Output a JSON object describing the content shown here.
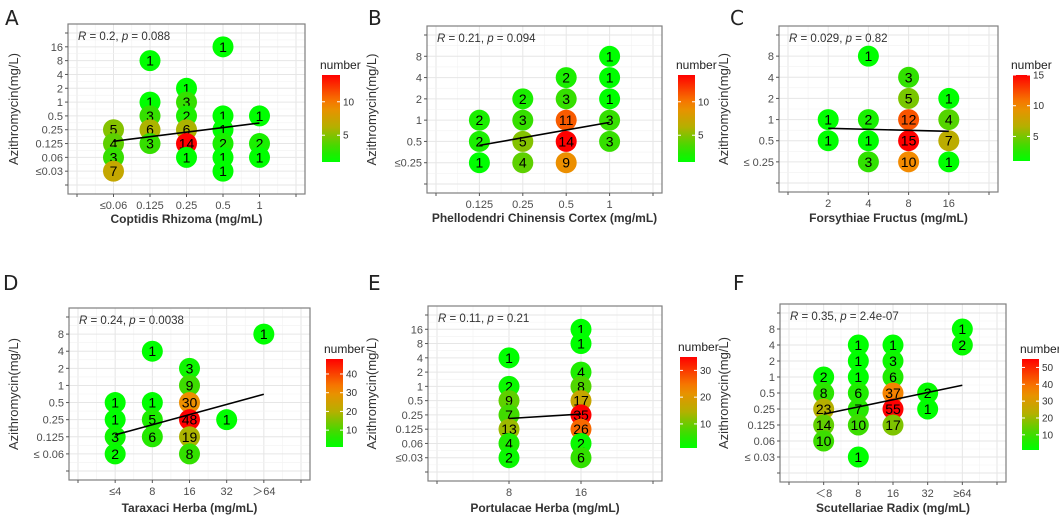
{
  "chart_data": [
    {
      "panel": "A",
      "type": "scatter",
      "xlabel": "Coptidis Rhizoma (mg/mL)",
      "ylabel": "Azithromycin(mg/L)",
      "stat": {
        "r": "0.2",
        "p": "0.088"
      },
      "x_categories": [
        "≤0.06",
        "0.125",
        "0.25",
        "0.5",
        "1"
      ],
      "y_categories": [
        "16",
        "8",
        "4",
        "2",
        "1",
        "0.5",
        "0.25",
        "0.125",
        "0.06",
        "≤0.03"
      ],
      "y_nominal": [
        16,
        8,
        4,
        2,
        1,
        0.5,
        0.25,
        0.125,
        0.06,
        0.03
      ],
      "points": [
        [
          "≤0.06",
          "0.25",
          5
        ],
        [
          "≤0.06",
          "0.125",
          4
        ],
        [
          "≤0.06",
          "0.06",
          3
        ],
        [
          "≤0.06",
          "≤0.03",
          7
        ],
        [
          "0.125",
          "8",
          1
        ],
        [
          "0.125",
          "1",
          1
        ],
        [
          "0.125",
          "0.5",
          3
        ],
        [
          "0.125",
          "0.25",
          6
        ],
        [
          "0.125",
          "0.125",
          3
        ],
        [
          "0.25",
          "2",
          1
        ],
        [
          "0.25",
          "1",
          3
        ],
        [
          "0.25",
          "0.5",
          2
        ],
        [
          "0.25",
          "0.25",
          6
        ],
        [
          "0.25",
          "0.125",
          14
        ],
        [
          "0.25",
          "0.06",
          1
        ],
        [
          "0.5",
          "16",
          1
        ],
        [
          "0.5",
          "0.5",
          1
        ],
        [
          "0.5",
          "0.25",
          1
        ],
        [
          "0.5",
          "0.125",
          2
        ],
        [
          "0.5",
          "0.06",
          1
        ],
        [
          "0.5",
          "≤0.03",
          1
        ],
        [
          "1",
          "0.5",
          1
        ],
        [
          "1",
          "0.125",
          2
        ],
        [
          "1",
          "0.06",
          1
        ]
      ],
      "trend": {
        "start": {
          "x": "≤0.06",
          "y": 0.14
        },
        "end": {
          "x": "1",
          "y": 0.35
        }
      },
      "legend": {
        "title": "number",
        "min": 1,
        "max": 14,
        "ticks": [
          "5",
          "10"
        ]
      }
    },
    {
      "panel": "B",
      "type": "scatter",
      "xlabel": "Phellodendri Chinensis Cortex (mg/mL)",
      "ylabel": "Azithromycin(mg/L)",
      "stat": {
        "r": "0.21",
        "p": "0.094"
      },
      "x_categories": [
        "0.125",
        "0.25",
        "0.5",
        "1"
      ],
      "y_categories": [
        "8",
        "4",
        "2",
        "1",
        "0.5",
        "≤0.25"
      ],
      "y_nominal": [
        8,
        4,
        2,
        1,
        0.5,
        0.25
      ],
      "points": [
        [
          "0.125",
          "1",
          2
        ],
        [
          "0.125",
          "0.5",
          2
        ],
        [
          "0.125",
          "≤0.25",
          1
        ],
        [
          "0.25",
          "2",
          2
        ],
        [
          "0.25",
          "1",
          3
        ],
        [
          "0.25",
          "0.5",
          5
        ],
        [
          "0.25",
          "≤0.25",
          4
        ],
        [
          "0.5",
          "4",
          2
        ],
        [
          "0.5",
          "2",
          3
        ],
        [
          "0.5",
          "1",
          11
        ],
        [
          "0.5",
          "0.5",
          14
        ],
        [
          "0.5",
          "≤0.25",
          9
        ],
        [
          "1",
          "8",
          1
        ],
        [
          "1",
          "4",
          1
        ],
        [
          "1",
          "2",
          1
        ],
        [
          "1",
          "1",
          3
        ],
        [
          "1",
          "0.5",
          3
        ]
      ],
      "trend": {
        "start": {
          "x": "0.125",
          "y": 0.44
        },
        "end": {
          "x": "1",
          "y": 0.93
        }
      },
      "legend": {
        "title": "number",
        "min": 1,
        "max": 14,
        "ticks": [
          "5",
          "10"
        ]
      }
    },
    {
      "panel": "C",
      "type": "scatter",
      "xlabel": "Forsythiae Fructus (mg/mL)",
      "ylabel": "Azithromycin(mg/L)",
      "stat": {
        "r": "0.029",
        "p": "0.82"
      },
      "x_categories": [
        "2",
        "4",
        "8",
        "16"
      ],
      "y_categories": [
        "8",
        "4",
        "2",
        "1",
        "0.5",
        "≤ 0.25"
      ],
      "y_nominal": [
        8,
        4,
        2,
        1,
        0.5,
        0.25
      ],
      "points": [
        [
          "2",
          "1",
          1
        ],
        [
          "2",
          "0.5",
          1
        ],
        [
          "4",
          "8",
          1
        ],
        [
          "4",
          "1",
          2
        ],
        [
          "4",
          "0.5",
          1
        ],
        [
          "4",
          "≤ 0.25",
          3
        ],
        [
          "8",
          "4",
          3
        ],
        [
          "8",
          "2",
          5
        ],
        [
          "8",
          "1",
          12
        ],
        [
          "8",
          "0.5",
          15
        ],
        [
          "8",
          "≤ 0.25",
          10
        ],
        [
          "16",
          "2",
          1
        ],
        [
          "16",
          "1",
          4
        ],
        [
          "16",
          "0.5",
          7
        ],
        [
          "16",
          "≤ 0.25",
          1
        ]
      ],
      "trend": {
        "start": {
          "x": "2",
          "y": 0.75
        },
        "end": {
          "x": "16",
          "y": 0.68
        }
      },
      "legend": {
        "title": "number",
        "min": 1,
        "max": 15,
        "ticks": [
          "5",
          "10",
          "15"
        ]
      }
    },
    {
      "panel": "D",
      "type": "scatter",
      "xlabel": "Taraxaci Herba (mg/mL)",
      "ylabel": "Azithromycin(mg/L)",
      "stat": {
        "r": "0.24",
        "p": "0.0038"
      },
      "x_categories": [
        "≤4",
        "8",
        "16",
        "32",
        "＞64"
      ],
      "y_categories": [
        "8",
        "4",
        "2",
        "1",
        "0.5",
        "0.25",
        "0.125",
        "≤ 0.06"
      ],
      "y_nominal": [
        8,
        4,
        2,
        1,
        0.5,
        0.25,
        0.125,
        0.06
      ],
      "points": [
        [
          "≤4",
          "0.5",
          1
        ],
        [
          "≤4",
          "0.25",
          1
        ],
        [
          "≤4",
          "0.125",
          3
        ],
        [
          "≤4",
          "≤ 0.06",
          2
        ],
        [
          "8",
          "4",
          1
        ],
        [
          "8",
          "0.5",
          1
        ],
        [
          "8",
          "0.25",
          5
        ],
        [
          "8",
          "0.125",
          6
        ],
        [
          "16",
          "2",
          3
        ],
        [
          "16",
          "1",
          9
        ],
        [
          "16",
          "0.5",
          30
        ],
        [
          "16",
          "0.25",
          48
        ],
        [
          "16",
          "0.125",
          19
        ],
        [
          "16",
          "≤ 0.06",
          8
        ],
        [
          "32",
          "0.25",
          1
        ],
        [
          "＞64",
          "8",
          1
        ]
      ],
      "trend": {
        "start": {
          "x": "≤4",
          "y": 0.135
        },
        "end": {
          "x": "＞64",
          "y": 0.7
        }
      },
      "legend": {
        "title": "number",
        "min": 1,
        "max": 48,
        "ticks": [
          "10",
          "20",
          "30",
          "40"
        ]
      }
    },
    {
      "panel": "E",
      "type": "scatter",
      "xlabel": "Portulacae Herba (mg/mL)",
      "ylabel": "Azithromycin(mg/L)",
      "stat": {
        "r": "0.11",
        "p": "0.21"
      },
      "x_categories": [
        "8",
        "16"
      ],
      "y_categories": [
        "16",
        "8",
        "4",
        "2",
        "1",
        "0.5",
        "0.25",
        "0.125",
        "0.06",
        "≤0.03"
      ],
      "y_nominal": [
        16,
        8,
        4,
        2,
        1,
        0.5,
        0.25,
        0.125,
        0.06,
        0.03
      ],
      "points": [
        [
          "8",
          "4",
          1
        ],
        [
          "8",
          "1",
          2
        ],
        [
          "8",
          "0.5",
          9
        ],
        [
          "8",
          "0.25",
          7
        ],
        [
          "8",
          "0.125",
          13
        ],
        [
          "8",
          "0.06",
          4
        ],
        [
          "8",
          "≤0.03",
          2
        ],
        [
          "16",
          "16",
          1
        ],
        [
          "16",
          "8",
          1
        ],
        [
          "16",
          "2",
          4
        ],
        [
          "16",
          "1",
          8
        ],
        [
          "16",
          "0.5",
          17
        ],
        [
          "16",
          "0.25",
          35
        ],
        [
          "16",
          "0.125",
          26
        ],
        [
          "16",
          "0.06",
          2
        ],
        [
          "16",
          "≤0.03",
          6
        ]
      ],
      "trend": {
        "start": {
          "x": "8",
          "y": 0.21
        },
        "end": {
          "x": "16",
          "y": 0.26
        }
      },
      "legend": {
        "title": "number",
        "min": 1,
        "max": 35,
        "ticks": [
          "10",
          "20",
          "30"
        ]
      }
    },
    {
      "panel": "F",
      "type": "scatter",
      "xlabel": "Scutellariae Radix (mg/mL)",
      "ylabel": "Azithromycin(mg/L)",
      "stat": {
        "r": "0.35",
        "p": "2.4e-07"
      },
      "x_categories": [
        "＜8",
        "8",
        "16",
        "32",
        "≥64"
      ],
      "y_categories": [
        "8",
        "4",
        "2",
        "1",
        "0.5",
        "0.25",
        "0.125",
        "0.06",
        "≤ 0.03"
      ],
      "y_nominal": [
        8,
        4,
        2,
        1,
        0.5,
        0.25,
        0.125,
        0.06,
        0.03
      ],
      "points": [
        [
          "＜8",
          "1",
          2
        ],
        [
          "＜8",
          "0.5",
          8
        ],
        [
          "＜8",
          "0.25",
          23
        ],
        [
          "＜8",
          "0.125",
          14
        ],
        [
          "＜8",
          "0.06",
          10
        ],
        [
          "8",
          "4",
          1
        ],
        [
          "8",
          "2",
          1
        ],
        [
          "8",
          "1",
          1
        ],
        [
          "8",
          "0.5",
          6
        ],
        [
          "8",
          "0.25",
          7
        ],
        [
          "8",
          "0.125",
          10
        ],
        [
          "8",
          "≤ 0.03",
          1
        ],
        [
          "16",
          "4",
          1
        ],
        [
          "16",
          "2",
          3
        ],
        [
          "16",
          "1",
          6
        ],
        [
          "16",
          "0.5",
          37
        ],
        [
          "16",
          "0.25",
          55
        ],
        [
          "16",
          "0.125",
          17
        ],
        [
          "32",
          "0.5",
          2
        ],
        [
          "32",
          "0.25",
          1
        ],
        [
          "≥64",
          "8",
          1
        ],
        [
          "≥64",
          "4",
          2
        ]
      ],
      "trend": {
        "start": {
          "x": "＜8",
          "y": 0.2
        },
        "end": {
          "x": "≥64",
          "y": 0.7
        }
      },
      "legend": {
        "title": "number",
        "min": 1,
        "max": 55,
        "ticks": [
          "10",
          "20",
          "30",
          "40",
          "50"
        ]
      }
    }
  ],
  "colors": {
    "low": "#00ff00",
    "mid": "#b4b000",
    "high_mid": "#f58a00",
    "high": "#ff0000",
    "trend_line": "#000000"
  }
}
